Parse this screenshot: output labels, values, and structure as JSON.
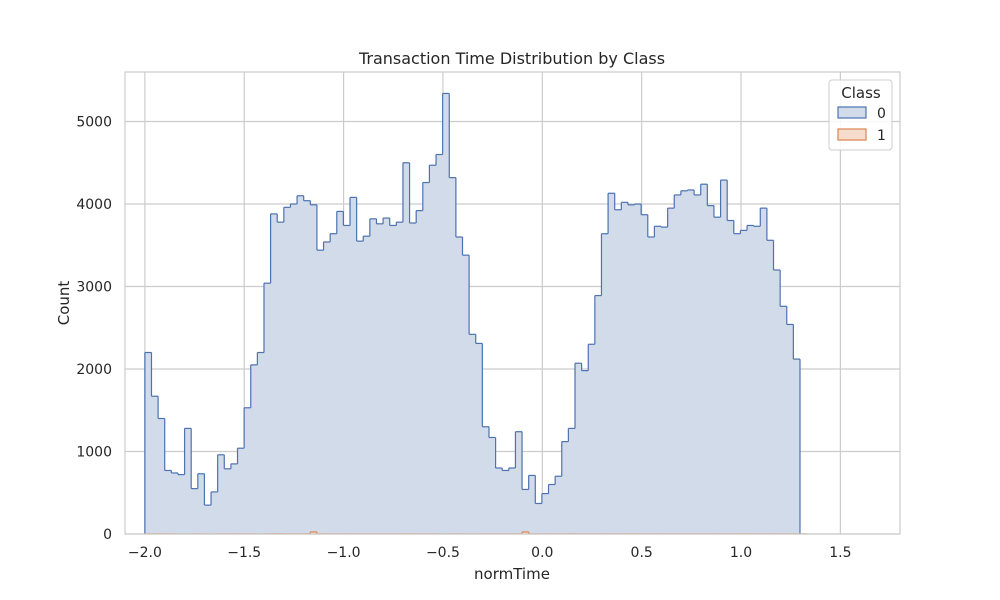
{
  "chart_data": {
    "type": "histogram-step",
    "title": "Transaction Time Distribution by Class",
    "xlabel": "normTime",
    "ylabel": "Count",
    "xlim": [
      -2.1,
      1.8
    ],
    "ylim": [
      0,
      5600
    ],
    "xticks": [
      -2.0,
      -1.5,
      -1.0,
      -0.5,
      0.0,
      0.5,
      1.0,
      1.5
    ],
    "xtick_labels": [
      "−2.0",
      "−1.5",
      "−1.0",
      "−0.5",
      "0.0",
      "0.5",
      "1.0",
      "1.5"
    ],
    "yticks": [
      0,
      1000,
      2000,
      3000,
      4000,
      5000
    ],
    "ytick_labels": [
      "0",
      "1000",
      "2000",
      "3000",
      "4000",
      "5000"
    ],
    "grid": true,
    "legend": {
      "title": "Class",
      "placement": "top-right",
      "entries": [
        "0",
        "1"
      ]
    },
    "bin_start": -2.0,
    "bin_width": 0.0333,
    "series": [
      {
        "name": "0",
        "color": "#4c72b0",
        "fill": "#d2dbea",
        "values": [
          2200,
          1670,
          1400,
          770,
          740,
          720,
          1280,
          550,
          730,
          350,
          510,
          960,
          790,
          850,
          1040,
          1530,
          2050,
          2200,
          3040,
          3880,
          3780,
          3960,
          4000,
          4100,
          4040,
          3990,
          3440,
          3540,
          3640,
          3910,
          3740,
          4080,
          3550,
          3610,
          3820,
          3760,
          3830,
          3740,
          3780,
          4500,
          3770,
          3920,
          4260,
          4470,
          4600,
          5340,
          4320,
          3600,
          3380,
          2420,
          2310,
          1300,
          1170,
          800,
          770,
          800,
          1240,
          540,
          710,
          370,
          490,
          600,
          700,
          1120,
          1280,
          2070,
          1980,
          2300,
          2890,
          3640,
          4130,
          3930,
          4020,
          3990,
          4000,
          3870,
          3600,
          3730,
          3720,
          3950,
          4110,
          4160,
          4170,
          4110,
          4240,
          3980,
          3840,
          4290,
          3800,
          3640,
          3680,
          3740,
          3730,
          3950,
          3560,
          3200,
          2760,
          2540,
          2120
        ]
      },
      {
        "name": "1",
        "color": "#dd8452",
        "fill": "#f6dccd",
        "values": [
          2,
          2,
          3,
          2,
          2,
          1,
          1,
          2,
          2,
          1,
          1,
          2,
          2,
          2,
          2,
          2,
          2,
          1,
          2,
          3,
          3,
          2,
          2,
          2,
          3,
          25,
          3,
          2,
          2,
          2,
          2,
          2,
          2,
          2,
          2,
          2,
          2,
          2,
          2,
          2,
          2,
          2,
          2,
          2,
          2,
          1,
          2,
          2,
          2,
          1,
          2,
          2,
          2,
          2,
          2,
          2,
          2,
          25,
          2,
          2,
          2,
          2,
          2,
          2,
          3,
          2,
          2,
          2,
          2,
          2,
          2,
          2,
          2,
          2,
          2,
          2,
          2,
          2,
          2,
          2,
          2,
          2,
          2,
          2,
          2,
          2,
          2,
          2,
          2,
          2,
          2,
          2,
          2,
          2,
          2,
          2,
          2,
          2,
          2,
          2
        ]
      }
    ]
  }
}
